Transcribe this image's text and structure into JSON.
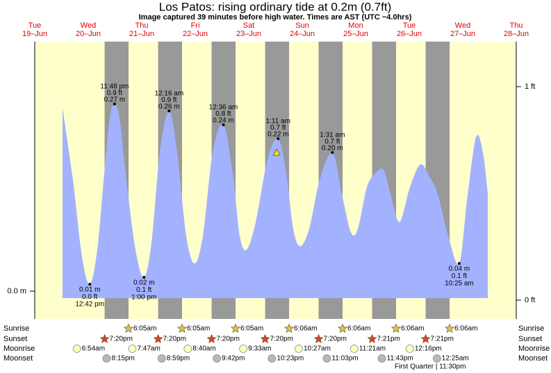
{
  "chart_data": {
    "type": "area",
    "title": "Los Patos: rising  ordinary tide at 0.2m (0.7ft)",
    "subtitle": "Image captured 39 minutes before high water. Times are AST (UTC −4.0hrs)",
    "color": "#a3b2ff",
    "day_color": "#ffffcc",
    "night_color": "#999999",
    "label_color": "#e00000",
    "xlim": [
      0.5,
      9.5
    ],
    "ylim": [
      -0.04,
      0.36
    ],
    "yticks": [
      {
        "value": 0,
        "label": "0.0 m"
      }
    ],
    "y2lim": [
      -0.088,
      1.211
    ],
    "y2ticks": [
      {
        "value": 0,
        "label": "0 ft"
      },
      {
        "value": 1,
        "label": "1 ft"
      }
    ],
    "days": [
      {
        "value": 0.5,
        "weekday": "Tue",
        "date": "19–Jun"
      },
      {
        "value": 1.5,
        "weekday": "Wed",
        "date": "20–Jun"
      },
      {
        "value": 2.5,
        "weekday": "Thu",
        "date": "21–Jun"
      },
      {
        "value": 3.5,
        "weekday": "Fri",
        "date": "22–Jun"
      },
      {
        "value": 4.5,
        "weekday": "Sat",
        "date": "23–Jun"
      },
      {
        "value": 5.5,
        "weekday": "Sun",
        "date": "24–Jun"
      },
      {
        "value": 6.5,
        "weekday": "Mon",
        "date": "25–Jun"
      },
      {
        "value": 7.5,
        "weekday": "Tue",
        "date": "26–Jun"
      },
      {
        "value": 8.5,
        "weekday": "Wed",
        "date": "27–Jun"
      },
      {
        "value": 9.5,
        "weekday": "Thu",
        "date": "28–Jun"
      }
    ],
    "x": [
      1.019,
      1.214,
      1.383,
      1.529,
      1.669,
      1.799,
      1.903,
      1.992,
      2.084,
      2.214,
      2.383,
      2.542,
      2.682,
      2.838,
      3.011,
      3.162,
      3.331,
      3.487,
      3.643,
      3.825,
      4.025,
      4.201,
      4.331,
      4.461,
      4.63,
      4.851,
      5.049,
      5.201,
      5.331,
      5.461,
      5.63,
      5.825,
      6.063,
      6.24,
      6.409,
      6.539,
      6.708,
      6.864,
      7.019,
      7.149,
      7.318,
      7.513,
      7.708,
      7.877,
      8.032,
      8.227,
      8.434,
      8.578,
      8.747,
      8.877,
      8.968
    ],
    "values": [
      0.265,
      0.16,
      0.05,
      0.01,
      0.06,
      0.17,
      0.25,
      0.27,
      0.25,
      0.16,
      0.06,
      0.02,
      0.07,
      0.2,
      0.26,
      0.2,
      0.08,
      0.04,
      0.08,
      0.2,
      0.24,
      0.17,
      0.08,
      0.06,
      0.1,
      0.19,
      0.22,
      0.17,
      0.09,
      0.065,
      0.09,
      0.16,
      0.2,
      0.14,
      0.085,
      0.09,
      0.15,
      0.17,
      0.175,
      0.14,
      0.1,
      0.15,
      0.183,
      0.165,
      0.14,
      0.08,
      0.04,
      0.13,
      0.222,
      0.2,
      0.14
    ],
    "extremes": [
      {
        "x": 1.529,
        "value": 0.01,
        "time": "12:42 pm",
        "ft": "0.0 ft",
        "m": "0.01 m"
      },
      {
        "x": 1.992,
        "value": 0.27,
        "time": "11:48 pm",
        "ft": "0.9 ft",
        "m": "0.27 m"
      },
      {
        "x": 2.542,
        "value": 0.02,
        "time": "1:00 pm",
        "ft": "0.1 ft",
        "m": "0.02 m"
      },
      {
        "x": 3.011,
        "value": 0.26,
        "time": "12:16 am",
        "ft": "0.9 ft",
        "m": "0.26 m"
      },
      {
        "x": 4.025,
        "value": 0.24,
        "time": "12:36 am",
        "ft": "0.8 ft",
        "m": "0.24 m"
      },
      {
        "x": 5.049,
        "value": 0.22,
        "time": "1:11 am",
        "ft": "0.7 ft",
        "m": "0.22 m"
      },
      {
        "x": 6.063,
        "value": 0.2,
        "time": "1:31 am",
        "ft": "0.7 ft",
        "m": "0.20 m"
      },
      {
        "x": 8.434,
        "value": 0.04,
        "time": "10:25 am",
        "ft": "0.1 ft",
        "m": "0.04 m"
      }
    ],
    "current": {
      "x": 5.022,
      "value": 0.2
    },
    "sunrise": {
      "name": "Sunrise",
      "color": "#d8c45a",
      "events": [
        {
          "x": 2.253,
          "label": "6:05am"
        },
        {
          "x": 3.253,
          "label": "6:05am"
        },
        {
          "x": 4.253,
          "label": "6:05am"
        },
        {
          "x": 5.254,
          "label": "6:06am"
        },
        {
          "x": 6.254,
          "label": "6:06am"
        },
        {
          "x": 7.254,
          "label": "6:06am"
        },
        {
          "x": 8.254,
          "label": "6:06am"
        }
      ]
    },
    "sunset": {
      "name": "Sunset",
      "color": "#d9442a",
      "events": [
        {
          "x": 1.806,
          "label": "7:20pm"
        },
        {
          "x": 2.806,
          "label": "7:20pm"
        },
        {
          "x": 3.806,
          "label": "7:20pm"
        },
        {
          "x": 4.806,
          "label": "7:20pm"
        },
        {
          "x": 5.806,
          "label": "7:20pm"
        },
        {
          "x": 6.806,
          "label": "7:21pm"
        },
        {
          "x": 7.806,
          "label": "7:21pm"
        }
      ]
    },
    "moonrise": {
      "name": "Moonrise",
      "color": "#ffffc0",
      "events": [
        {
          "x": 1.288,
          "label": "6:54am"
        },
        {
          "x": 2.324,
          "label": "7:47am"
        },
        {
          "x": 3.361,
          "label": "8:40am"
        },
        {
          "x": 4.398,
          "label": "9:33am"
        },
        {
          "x": 5.435,
          "label": "10:27am"
        },
        {
          "x": 6.473,
          "label": "11:21am"
        },
        {
          "x": 7.511,
          "label": "12:16pm"
        }
      ]
    },
    "moonset": {
      "name": "Moonset",
      "color": "#b8b8b8",
      "events": [
        {
          "x": 1.844,
          "label": "8:15pm"
        },
        {
          "x": 2.874,
          "label": "8:59pm"
        },
        {
          "x": 3.904,
          "label": "9:42pm"
        },
        {
          "x": 4.933,
          "label": "10:23pm"
        },
        {
          "x": 5.96,
          "label": "11:03pm"
        },
        {
          "x": 6.988,
          "label": "11:43pm"
        },
        {
          "x": 8.017,
          "label": "12:25am"
        }
      ]
    },
    "moon_phase": "First Quarter | 11:30pm"
  }
}
